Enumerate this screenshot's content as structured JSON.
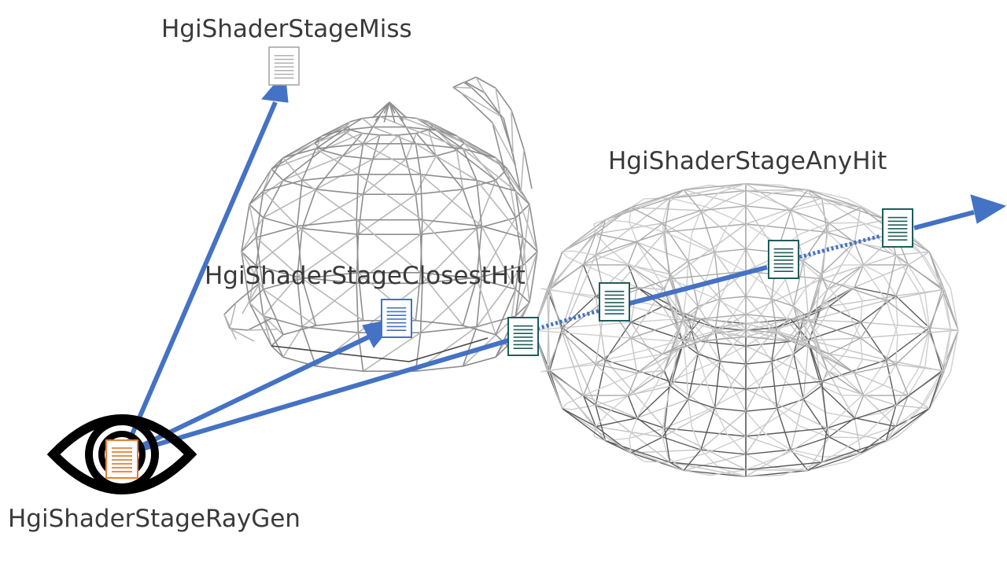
{
  "labels": {
    "miss": "HgiShaderStageMiss",
    "closest_hit": "HgiShaderStageClosestHit",
    "any_hit": "HgiShaderStageAnyHit",
    "ray_gen": "HgiShaderStageRayGen"
  },
  "colors": {
    "ray": "#4472c4",
    "raygen_doc": "#ed7d31",
    "closest_doc": "#4472c4",
    "anyhit_doc": "#1f5c5c",
    "miss_doc": "#a6a6a6",
    "eye": "#000000",
    "wireframe": "#8a8a8a"
  },
  "icons": {
    "eye": "eye-icon",
    "shader_doc": "document-icon",
    "teapot": "teapot-wireframe",
    "torus": "torus-wireframe"
  }
}
